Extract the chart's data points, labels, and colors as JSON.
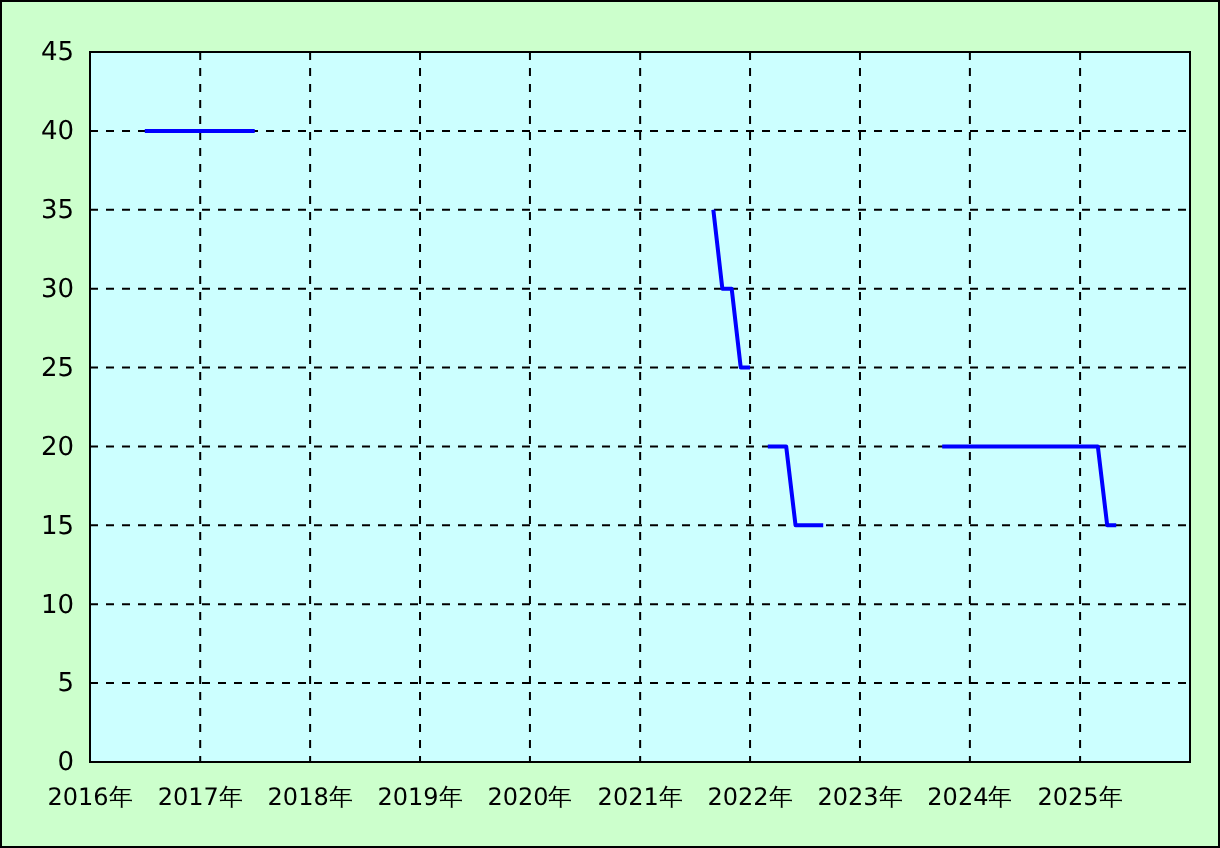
{
  "chart_data": {
    "type": "line",
    "xlim": [
      "2016",
      "2026"
    ],
    "ylim": [
      0,
      45
    ],
    "xticks": [
      {
        "value": "2016",
        "label": "2016年"
      },
      {
        "value": "2017",
        "label": "2017年"
      },
      {
        "value": "2018",
        "label": "2018年"
      },
      {
        "value": "2019",
        "label": "2019年"
      },
      {
        "value": "2020",
        "label": "2020年"
      },
      {
        "value": "2021",
        "label": "2021年"
      },
      {
        "value": "2022",
        "label": "2022年"
      },
      {
        "value": "2023",
        "label": "2023年"
      },
      {
        "value": "2024",
        "label": "2024年"
      },
      {
        "value": "2025",
        "label": "2025年"
      }
    ],
    "yticks": [
      0,
      5,
      10,
      15,
      20,
      25,
      30,
      35,
      40,
      45
    ],
    "grid": true,
    "marker": "none",
    "line_style": "solid",
    "series": [
      {
        "color": "#0000ff",
        "x": [
          "2016-07",
          "2017-07",
          "2017-08",
          "2021-09",
          "2021-10",
          "2021-11",
          "2021-12",
          "2022-01",
          "2022-02",
          "2022-03",
          "2022-05",
          "2022-06",
          "2022-09",
          "2022-10",
          "2023-10",
          "2025-03",
          "2025-04",
          "2025-05"
        ],
        "values": [
          40,
          40,
          null,
          35,
          30,
          30,
          25,
          25,
          null,
          20,
          20,
          15,
          15,
          null,
          20,
          20,
          15,
          15
        ]
      }
    ]
  }
}
